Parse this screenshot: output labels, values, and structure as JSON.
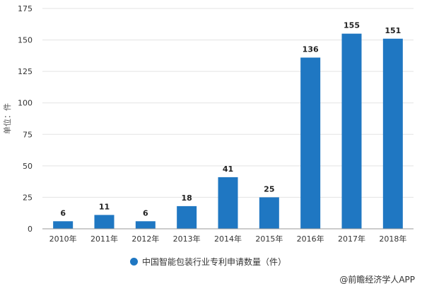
{
  "chart_data": {
    "type": "bar",
    "categories": [
      "2010年",
      "2011年",
      "2012年",
      "2013年",
      "2014年",
      "2015年",
      "2016年",
      "2017年",
      "2018年"
    ],
    "values": [
      6,
      11,
      6,
      18,
      41,
      25,
      136,
      155,
      151
    ],
    "ylabel": "单位：件",
    "ylim": [
      0,
      175
    ],
    "yticks": [
      0,
      25,
      50,
      75,
      100,
      125,
      150,
      175
    ],
    "grid": true,
    "legend_position": "bottom",
    "series_name": "中国智能包装行业专利申请数量（件）",
    "bar_color": "#1f77c2"
  },
  "legend": {
    "label": "中国智能包装行业专利申请数量（件）"
  },
  "credit": "@前瞻经济学人APP"
}
